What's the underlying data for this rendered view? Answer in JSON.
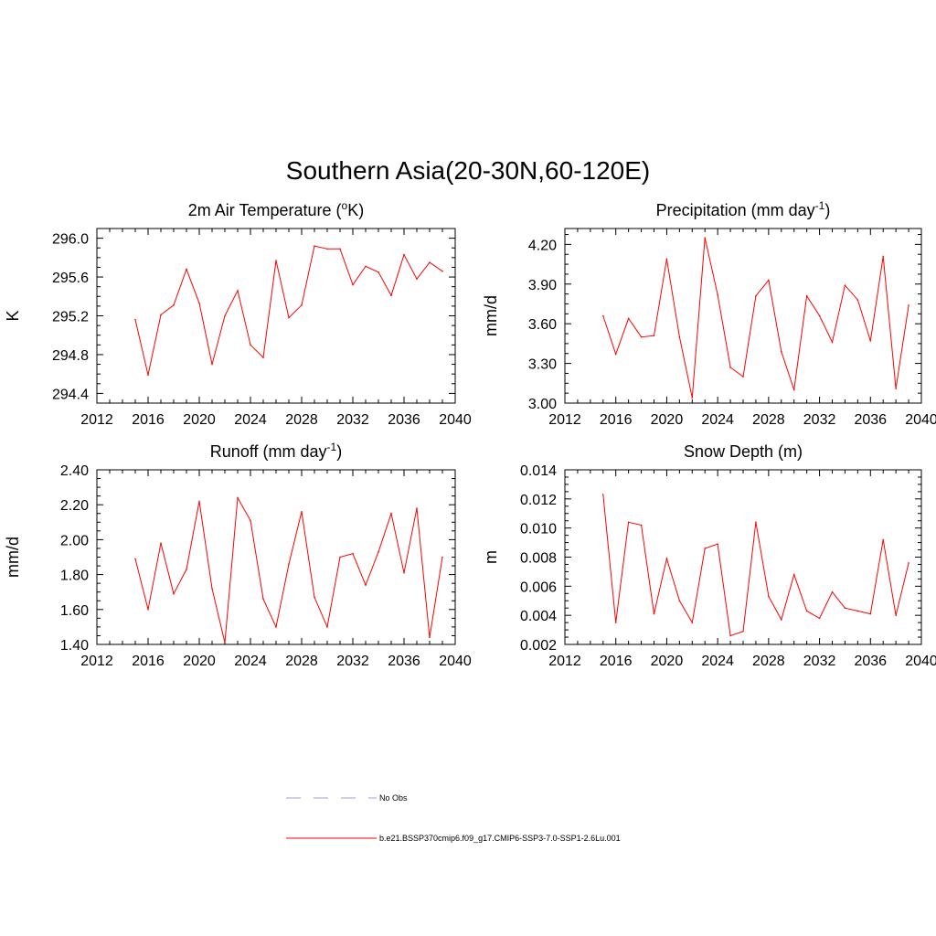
{
  "figure_title": "Southern Asia(20-30N,60-120E)",
  "legend": [
    {
      "label": "No Obs",
      "color": "#9f9fdf",
      "style": "dashed"
    },
    {
      "label": "b.e21.BSSP370cmip6.f09_g17.CMIP6-SSP3-7.0-SSP1-2.6Lu.001",
      "color": "#ff0000",
      "style": "solid"
    }
  ],
  "chart_data": [
    {
      "type": "line",
      "title": "2m Air Temperature (",
      "title_sup": "o",
      "title_after": "K)",
      "ylabel": "K",
      "xlim": [
        2012,
        2040
      ],
      "xticks": [
        2012,
        2016,
        2020,
        2024,
        2028,
        2032,
        2036,
        2040
      ],
      "ylim": [
        294.3,
        296.1
      ],
      "yticks": [
        294.4,
        294.8,
        295.2,
        295.6,
        296.0
      ],
      "ytick_labels": [
        "294.4",
        "294.8",
        "295.2",
        "295.6",
        "296.0"
      ],
      "series": [
        {
          "color": "#ff0000",
          "x": [
            2015,
            2016,
            2017,
            2018,
            2019,
            2020,
            2021,
            2022,
            2023,
            2024,
            2025,
            2026,
            2027,
            2028,
            2029,
            2030,
            2031,
            2032,
            2033,
            2034,
            2035,
            2036,
            2037,
            2038,
            2039
          ],
          "values": [
            295.16,
            294.59,
            295.21,
            295.31,
            295.68,
            295.33,
            294.7,
            295.2,
            295.46,
            294.9,
            294.77,
            295.77,
            295.18,
            295.31,
            295.92,
            295.89,
            295.89,
            295.52,
            295.71,
            295.65,
            295.41,
            295.83,
            295.58,
            295.75,
            295.66
          ]
        }
      ]
    },
    {
      "type": "line",
      "title": "Precipitation (mm day",
      "title_sup": "-1",
      "title_after": ")",
      "ylabel": "mm/d",
      "xlim": [
        2012,
        2040
      ],
      "xticks": [
        2012,
        2016,
        2020,
        2024,
        2028,
        2032,
        2036,
        2040
      ],
      "ylim": [
        3.0,
        4.32
      ],
      "yticks": [
        3.0,
        3.3,
        3.6,
        3.9,
        4.2
      ],
      "ytick_labels": [
        "3.00",
        "3.30",
        "3.60",
        "3.90",
        "4.20"
      ],
      "series": [
        {
          "color": "#ff0000",
          "x": [
            2015,
            2016,
            2017,
            2018,
            2019,
            2020,
            2021,
            2022,
            2023,
            2024,
            2025,
            2026,
            2027,
            2028,
            2029,
            2030,
            2031,
            2032,
            2033,
            2034,
            2035,
            2036,
            2037,
            2038,
            2039
          ],
          "values": [
            3.66,
            3.37,
            3.64,
            3.5,
            3.51,
            4.09,
            3.5,
            3.04,
            4.25,
            3.82,
            3.27,
            3.2,
            3.81,
            3.93,
            3.39,
            3.1,
            3.81,
            3.66,
            3.46,
            3.89,
            3.78,
            3.47,
            4.11,
            3.11,
            3.74
          ]
        }
      ]
    },
    {
      "type": "line",
      "title": "Runoff (mm day",
      "title_sup": "-1",
      "title_after": ")",
      "ylabel": "mm/d",
      "xlim": [
        2012,
        2040
      ],
      "xticks": [
        2012,
        2016,
        2020,
        2024,
        2028,
        2032,
        2036,
        2040
      ],
      "ylim": [
        1.4,
        2.4
      ],
      "yticks": [
        1.4,
        1.6,
        1.8,
        2.0,
        2.2,
        2.4
      ],
      "ytick_labels": [
        "1.40",
        "1.60",
        "1.80",
        "2.00",
        "2.20",
        "2.40"
      ],
      "series": [
        {
          "color": "#ff0000",
          "x": [
            2015,
            2016,
            2017,
            2018,
            2019,
            2020,
            2021,
            2022,
            2023,
            2024,
            2025,
            2026,
            2027,
            2028,
            2029,
            2030,
            2031,
            2032,
            2033,
            2034,
            2035,
            2036,
            2037,
            2038,
            2039
          ],
          "values": [
            1.89,
            1.6,
            1.98,
            1.69,
            1.83,
            2.22,
            1.72,
            1.41,
            2.24,
            2.11,
            1.66,
            1.5,
            1.86,
            2.16,
            1.67,
            1.5,
            1.9,
            1.92,
            1.74,
            1.93,
            2.15,
            1.81,
            2.18,
            1.44,
            1.9
          ]
        }
      ]
    },
    {
      "type": "line",
      "title": "Snow Depth (m)",
      "title_sup": "",
      "title_after": "",
      "ylabel": "m",
      "xlim": [
        2012,
        2040
      ],
      "xticks": [
        2012,
        2016,
        2020,
        2024,
        2028,
        2032,
        2036,
        2040
      ],
      "ylim": [
        0.002,
        0.014
      ],
      "yticks": [
        0.002,
        0.004,
        0.006,
        0.008,
        0.01,
        0.012,
        0.014
      ],
      "ytick_labels": [
        "0.002",
        "0.004",
        "0.006",
        "0.008",
        "0.010",
        "0.012",
        "0.014"
      ],
      "series": [
        {
          "color": "#ff0000",
          "x": [
            2015,
            2016,
            2017,
            2018,
            2019,
            2020,
            2021,
            2022,
            2023,
            2024,
            2025,
            2026,
            2027,
            2028,
            2029,
            2030,
            2031,
            2032,
            2033,
            2034,
            2035,
            2036,
            2037,
            2038,
            2039
          ],
          "values": [
            0.0123,
            0.0035,
            0.0104,
            0.0102,
            0.0041,
            0.0079,
            0.005,
            0.0035,
            0.0086,
            0.0089,
            0.0026,
            0.0029,
            0.0104,
            0.0053,
            0.0037,
            0.0068,
            0.0043,
            0.0038,
            0.0056,
            0.0045,
            0.0043,
            0.0041,
            0.0092,
            0.004,
            0.0076
          ]
        }
      ]
    }
  ]
}
